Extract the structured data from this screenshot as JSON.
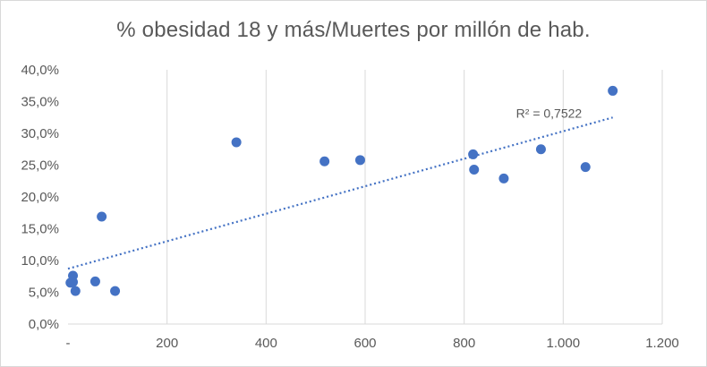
{
  "chart_data": {
    "type": "scatter",
    "title": "% obesidad 18 y más/Muertes por millón de hab.",
    "xlabel": "",
    "ylabel": "",
    "xlim": [
      0,
      1200
    ],
    "ylim": [
      0,
      0.4
    ],
    "x_ticks": [
      0,
      200,
      400,
      600,
      800,
      1000,
      1200
    ],
    "x_tick_labels": [
      "-",
      "200",
      "400",
      "600",
      "800",
      "1.000",
      "1.200"
    ],
    "y_ticks": [
      0,
      0.05,
      0.1,
      0.15,
      0.2,
      0.25,
      0.3,
      0.35,
      0.4
    ],
    "y_tick_labels": [
      "0,0%",
      "5,0%",
      "10,0%",
      "15,0%",
      "20,0%",
      "25,0%",
      "30,0%",
      "35,0%",
      "40,0%"
    ],
    "grid": "vertical",
    "legend": "none",
    "marker_color": "#4472c4",
    "trendline_color": "#4472c4",
    "points": [
      {
        "x": 5,
        "y": 0.065
      },
      {
        "x": 10,
        "y": 0.076
      },
      {
        "x": 10,
        "y": 0.066
      },
      {
        "x": 15,
        "y": 0.052
      },
      {
        "x": 55,
        "y": 0.067
      },
      {
        "x": 68,
        "y": 0.169
      },
      {
        "x": 95,
        "y": 0.052
      },
      {
        "x": 340,
        "y": 0.286
      },
      {
        "x": 518,
        "y": 0.256
      },
      {
        "x": 590,
        "y": 0.258
      },
      {
        "x": 818,
        "y": 0.267
      },
      {
        "x": 820,
        "y": 0.243
      },
      {
        "x": 880,
        "y": 0.229
      },
      {
        "x": 955,
        "y": 0.275
      },
      {
        "x": 1045,
        "y": 0.247
      },
      {
        "x": 1100,
        "y": 0.367
      }
    ],
    "trendline": {
      "type": "linear",
      "x": [
        0,
        1100
      ],
      "y": [
        0.087,
        0.325
      ],
      "label": "R² = 0,7522"
    }
  }
}
